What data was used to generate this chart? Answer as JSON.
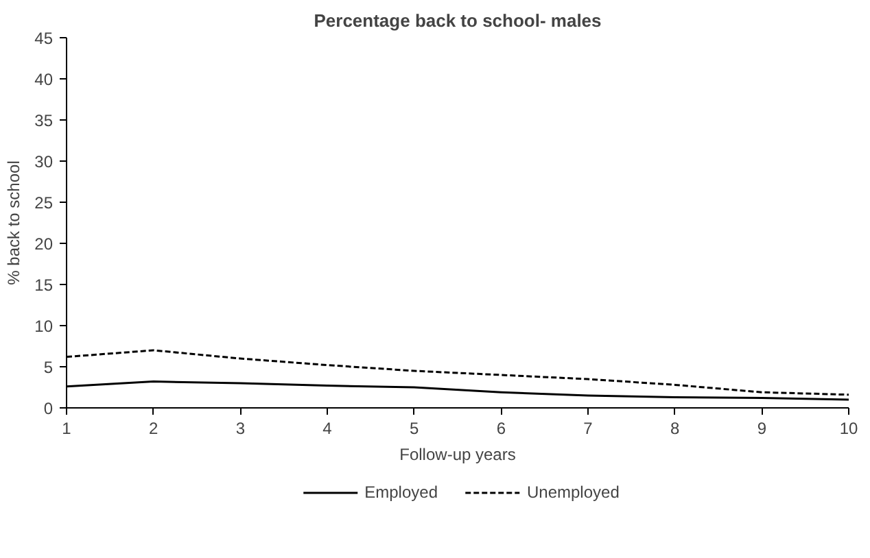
{
  "chart_data": {
    "type": "line",
    "title": "Percentage back to school- males",
    "xlabel": "Follow-up years",
    "ylabel": "% back to school",
    "x": [
      1,
      2,
      3,
      4,
      5,
      6,
      7,
      8,
      9,
      10
    ],
    "series": [
      {
        "name": "Employed",
        "color": "#000000",
        "line_style": "solid",
        "values": [
          2.6,
          3.2,
          3.0,
          2.7,
          2.5,
          1.9,
          1.5,
          1.3,
          1.2,
          1.0
        ]
      },
      {
        "name": "Unemployed",
        "color": "#000000",
        "line_style": "dashed",
        "values": [
          6.2,
          7.0,
          6.0,
          5.2,
          4.5,
          4.0,
          3.5,
          2.8,
          1.9,
          1.6
        ]
      }
    ],
    "xlim": [
      1,
      10
    ],
    "xticks": [
      1,
      2,
      3,
      4,
      5,
      6,
      7,
      8,
      9,
      10
    ],
    "ylim": [
      0,
      45
    ],
    "yticks": [
      0,
      5,
      10,
      15,
      20,
      25,
      30,
      35,
      40,
      45
    ],
    "grid": false,
    "legend": "bottom",
    "marker": "none"
  }
}
